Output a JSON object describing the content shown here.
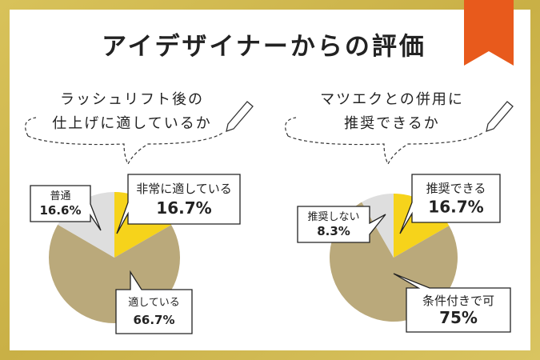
{
  "title": "アイデザイナーからの評価",
  "chart_data": [
    {
      "type": "pie",
      "title": [
        "ラッシュリフト後の",
        "仕上げに適しているか"
      ],
      "categories": [
        "非常に適している",
        "適している",
        "普通"
      ],
      "values": [
        16.7,
        66.7,
        16.6
      ],
      "value_labels": [
        "16.7%",
        "66.7%",
        "16.6%"
      ],
      "colors": [
        "#f6d31b",
        "#baa97b",
        "#dedede"
      ]
    },
    {
      "type": "pie",
      "title": [
        "マツエクとの併用に",
        "推奨できるか"
      ],
      "categories": [
        "推奨できる",
        "条件付きで可",
        "推奨しない"
      ],
      "values": [
        16.7,
        75,
        8.3
      ],
      "value_labels": [
        "16.7%",
        "75%",
        "8.3%"
      ],
      "colors": [
        "#f6d31b",
        "#baa97b",
        "#dedede"
      ]
    }
  ]
}
